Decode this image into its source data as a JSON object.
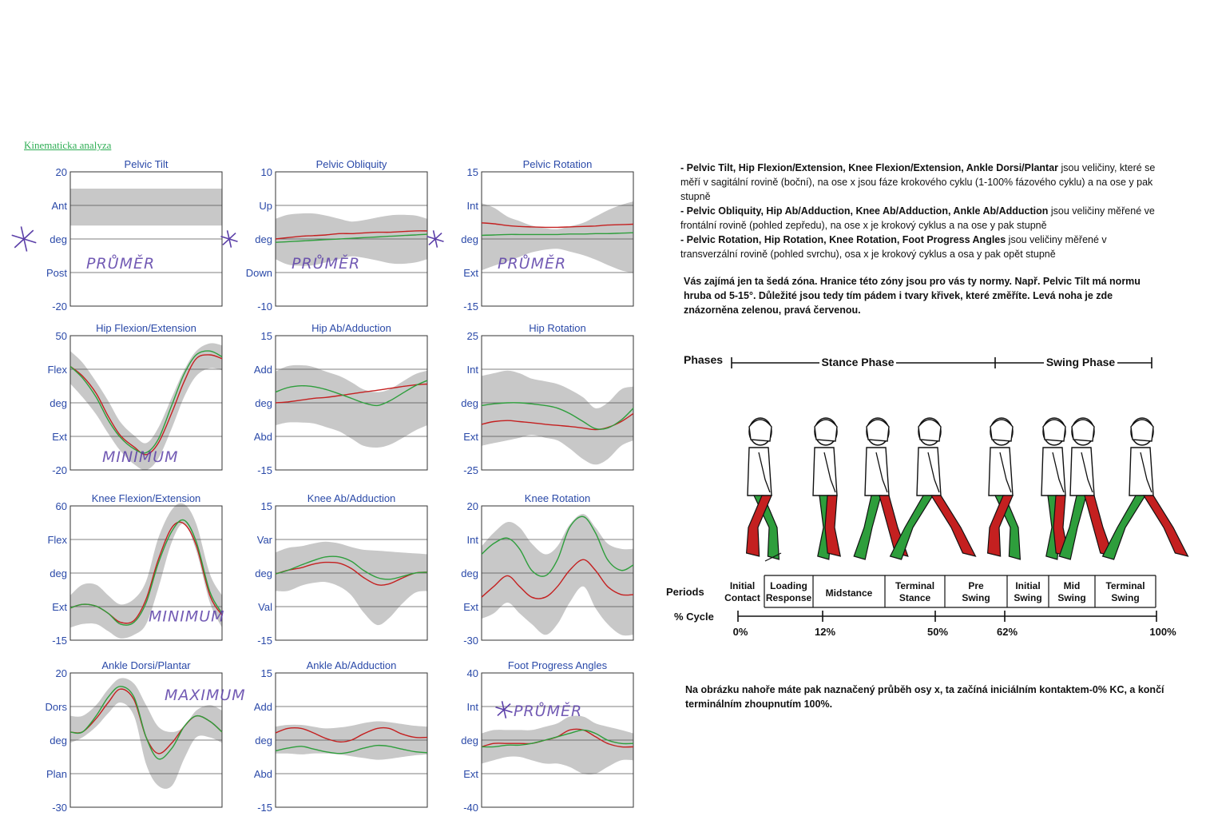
{
  "header": {
    "title": "Kinematicka analyza"
  },
  "colors": {
    "band": "#c8c8c8",
    "left": "#2e9e3c",
    "right": "#c42020",
    "axis": "#2a49a8",
    "annot": "#5b3fa8"
  },
  "charts": [
    {
      "id": "pelvic-tilt",
      "title": "Pelvic Tilt",
      "ymax": "20",
      "ymin": "-20",
      "labels": [
        "Ant",
        "deg",
        "Post"
      ],
      "annotation": "PRŮMĚR",
      "star": true
    },
    {
      "id": "pelvic-obliquity",
      "title": "Pelvic Obliquity",
      "ymax": "10",
      "ymin": "-10",
      "labels": [
        "Up",
        "deg",
        "Down"
      ],
      "annotation": "PRŮMĚR",
      "star": true
    },
    {
      "id": "pelvic-rotation",
      "title": "Pelvic Rotation",
      "ymax": "15",
      "ymin": "-15",
      "labels": [
        "Int",
        "deg",
        "Ext"
      ],
      "annotation": "PRŮMĚR",
      "star": true
    },
    {
      "id": "hip-flexion",
      "title": "Hip Flexion/Extension",
      "ymax": "50",
      "ymin": "-20",
      "labels": [
        "Flex",
        "deg",
        "Ext"
      ],
      "annotation": "MINIMUM"
    },
    {
      "id": "hip-abduction",
      "title": "Hip Ab/Adduction",
      "ymax": "15",
      "ymin": "-15",
      "labels": [
        "Add",
        "deg",
        "Abd"
      ]
    },
    {
      "id": "hip-rotation",
      "title": "Hip Rotation",
      "ymax": "25",
      "ymin": "-25",
      "labels": [
        "Int",
        "deg",
        "Ext"
      ]
    },
    {
      "id": "knee-flexion",
      "title": "Knee Flexion/Extension",
      "ymax": "60",
      "ymin": "-15",
      "labels": [
        "Flex",
        "deg",
        "Ext"
      ],
      "annotation": "MINIMUM"
    },
    {
      "id": "knee-abduction",
      "title": "Knee Ab/Adduction",
      "ymax": "15",
      "ymin": "-15",
      "labels": [
        "Var",
        "deg",
        "Val"
      ]
    },
    {
      "id": "knee-rotation",
      "title": "Knee Rotation",
      "ymax": "20",
      "ymin": "-30",
      "labels": [
        "Int",
        "deg",
        "Ext"
      ]
    },
    {
      "id": "ankle-dorsi",
      "title": "Ankle Dorsi/Plantar",
      "ymax": "20",
      "ymin": "-30",
      "labels": [
        "Dors",
        "deg",
        "Plan"
      ],
      "annotation": "MAXIMUM"
    },
    {
      "id": "ankle-abduction",
      "title": "Ankle Ab/Adduction",
      "ymax": "15",
      "ymin": "-15",
      "labels": [
        "Add",
        "deg",
        "Abd"
      ]
    },
    {
      "id": "foot-progress",
      "title": "Foot Progress Angles",
      "ymax": "40",
      "ymin": "-40",
      "labels": [
        "Int",
        "deg",
        "Ext"
      ],
      "annotation": "PRŮMĚR",
      "star": true
    }
  ],
  "chart_data": [
    {
      "type": "line",
      "title": "Pelvic Tilt",
      "x": [
        0,
        100
      ],
      "ylim": [
        -20,
        20
      ],
      "yticks": [
        "20",
        "Ant",
        "deg",
        "Post",
        "-20"
      ],
      "norm_band": [
        [
          4,
          15
        ],
        [
          4,
          15
        ]
      ],
      "series": []
    },
    {
      "type": "line",
      "title": "Pelvic Obliquity",
      "x": [
        0,
        8,
        17,
        25,
        33,
        42,
        50,
        58,
        67,
        75,
        83,
        92,
        100
      ],
      "ylim": [
        -10,
        10
      ],
      "yticks": [
        "10",
        "Up",
        "deg",
        "Down",
        "-10"
      ],
      "band_upper": [
        3,
        3.6,
        3.8,
        3.8,
        3.5,
        3,
        2.6,
        2.8,
        3.2,
        3.5,
        3.6,
        3.5,
        3
      ],
      "band_lower": [
        -3,
        -3.8,
        -4,
        -3.9,
        -3.5,
        -3,
        -2.6,
        -2.8,
        -3.2,
        -3.6,
        -3.7,
        -3.5,
        -3
      ],
      "series": [
        {
          "values": [
            0,
            0.2,
            0.4,
            0.5,
            0.6,
            0.8,
            0.8,
            0.9,
            1,
            1,
            1.1,
            1.2,
            1.2
          ]
        },
        {
          "values": [
            -0.5,
            -0.4,
            -0.3,
            -0.2,
            -0.1,
            0,
            0.1,
            0.2,
            0.3,
            0.4,
            0.5,
            0.6,
            0.7
          ]
        }
      ]
    },
    {
      "type": "line",
      "title": "Pelvic Rotation",
      "x": [
        0,
        8,
        17,
        25,
        33,
        42,
        50,
        58,
        67,
        75,
        83,
        92,
        100
      ],
      "ylim": [
        -15,
        15
      ],
      "yticks": [
        "15",
        "Int",
        "deg",
        "Ext",
        "-15"
      ],
      "band_upper": [
        8,
        7,
        5,
        4,
        3,
        2.4,
        2.2,
        2.8,
        3.6,
        5,
        6.4,
        7.6,
        8.4
      ],
      "band_lower": [
        -7,
        -6,
        -5,
        -4,
        -3,
        -2.4,
        -2.2,
        -2.8,
        -3.6,
        -4.6,
        -5.8,
        -7,
        -7.6
      ],
      "series": [
        {
          "values": [
            3.6,
            3.4,
            3,
            2.8,
            2.7,
            2.6,
            2.6,
            2.7,
            2.8,
            2.9,
            3.1,
            3.2,
            3.3
          ]
        },
        {
          "values": [
            0.8,
            0.9,
            1,
            1,
            1,
            1,
            1,
            1.1,
            1.1,
            1.2,
            1.2,
            1.3,
            1.4
          ]
        }
      ]
    },
    {
      "type": "line",
      "title": "Hip Flexion/Extension",
      "x": [
        0,
        8,
        17,
        25,
        33,
        42,
        50,
        58,
        67,
        75,
        83,
        92,
        100
      ],
      "ylim": [
        -20,
        50
      ],
      "yticks": [
        "50",
        "Flex",
        "deg",
        "Ext",
        "-20"
      ],
      "band_upper": [
        42,
        36,
        26,
        16,
        5,
        -2,
        -6,
        2,
        18,
        32,
        42,
        46,
        45
      ],
      "band_lower": [
        25,
        18,
        9,
        -1,
        -10,
        -17,
        -20,
        -14,
        2,
        18,
        29,
        33,
        32
      ],
      "series": [
        {
          "values": [
            34,
            29,
            20,
            8,
            -2,
            -8,
            -12,
            -6,
            10,
            26,
            38,
            40,
            38
          ]
        },
        {
          "values": [
            34,
            28,
            18,
            6,
            -3,
            -9,
            -11,
            -4,
            14,
            30,
            40,
            42,
            39
          ]
        }
      ]
    },
    {
      "type": "line",
      "title": "Hip Ab/Adduction",
      "x": [
        0,
        8,
        17,
        25,
        33,
        42,
        50,
        58,
        67,
        75,
        83,
        92,
        100
      ],
      "ylim": [
        -15,
        15
      ],
      "yticks": [
        "15",
        "Add",
        "deg",
        "Abd",
        "-15"
      ],
      "band_upper": [
        7,
        8.2,
        8.4,
        8,
        7,
        6,
        4.6,
        3,
        2.4,
        3,
        4.6,
        6.4,
        7.2
      ],
      "band_lower": [
        -5,
        -4.4,
        -4.4,
        -4.6,
        -5.4,
        -6.4,
        -8,
        -9.6,
        -10,
        -9.4,
        -8,
        -6.2,
        -5
      ],
      "series": [
        {
          "values": [
            0,
            0.2,
            0.6,
            1,
            1.2,
            1.6,
            2,
            2.4,
            2.8,
            3.2,
            3.6,
            4,
            4.2
          ]
        },
        {
          "values": [
            2.4,
            3.4,
            3.8,
            3.6,
            3,
            2,
            1,
            0,
            -0.6,
            0.4,
            2,
            3.8,
            5
          ]
        }
      ]
    },
    {
      "type": "line",
      "title": "Hip Rotation",
      "x": [
        0,
        8,
        17,
        25,
        33,
        42,
        50,
        58,
        67,
        75,
        83,
        92,
        100
      ],
      "ylim": [
        -25,
        25
      ],
      "yticks": [
        "25",
        "Int",
        "deg",
        "Ext",
        "-25"
      ],
      "band_upper": [
        10,
        11,
        12,
        11,
        9,
        8,
        7,
        5,
        2,
        -2,
        0,
        5,
        6
      ],
      "band_lower": [
        -16,
        -15,
        -14,
        -13,
        -12,
        -13,
        -14,
        -17,
        -21,
        -23,
        -21,
        -16,
        -14
      ],
      "series": [
        {
          "values": [
            -8,
            -7,
            -6.6,
            -7,
            -7.4,
            -8,
            -8.4,
            -8.8,
            -9.4,
            -10,
            -9.2,
            -7,
            -4
          ]
        },
        {
          "values": [
            -1,
            -0.4,
            0,
            0,
            -0.4,
            -1,
            -2,
            -4,
            -7,
            -9.6,
            -9.4,
            -6.4,
            -2
          ]
        }
      ]
    },
    {
      "type": "line",
      "title": "Knee Flexion/Extension",
      "x": [
        0,
        8,
        17,
        25,
        33,
        42,
        50,
        58,
        67,
        75,
        83,
        92,
        100
      ],
      "ylim": [
        -15,
        60
      ],
      "yticks": [
        "60",
        "Flex",
        "deg",
        "Ext",
        "-15"
      ],
      "band_upper": [
        10,
        16,
        16,
        10,
        5,
        8,
        18,
        42,
        58,
        61,
        50,
        22,
        10
      ],
      "band_lower": [
        -8,
        -6,
        -6,
        -10,
        -14,
        -12,
        -6,
        14,
        40,
        50,
        35,
        6,
        -8
      ],
      "series": [
        {
          "values": [
            3,
            5,
            4,
            0,
            -5,
            -4,
            8,
            30,
            48,
            50,
            38,
            10,
            -1
          ]
        },
        {
          "values": [
            3,
            5,
            4,
            0,
            -6,
            -5,
            6,
            28,
            46,
            52,
            40,
            12,
            0
          ]
        }
      ]
    },
    {
      "type": "line",
      "title": "Knee Ab/Adduction",
      "x": [
        0,
        8,
        17,
        25,
        33,
        42,
        50,
        58,
        67,
        75,
        83,
        92,
        100
      ],
      "ylim": [
        -15,
        15
      ],
      "yticks": [
        "15",
        "Var",
        "deg",
        "Val",
        "-15"
      ],
      "band_upper": [
        4.6,
        5.6,
        6,
        6.6,
        7,
        6.6,
        5.8,
        5.2,
        5,
        4.8,
        4.6,
        4.4,
        4.2
      ],
      "band_lower": [
        -4,
        -4,
        -2.8,
        -2.2,
        -2,
        -3,
        -5,
        -8.8,
        -11.6,
        -10,
        -7,
        -4.4,
        -4
      ],
      "series": [
        {
          "values": [
            -0.2,
            0.6,
            1.2,
            2,
            2.4,
            2.2,
            1,
            -1,
            -2.6,
            -2.4,
            -1.2,
            0,
            0.2
          ]
        },
        {
          "values": [
            -0.2,
            0.6,
            1.8,
            2.8,
            3.6,
            3.6,
            2.6,
            0.6,
            -1,
            -1.4,
            -0.8,
            0,
            0.2
          ]
        }
      ]
    },
    {
      "type": "line",
      "title": "Knee Rotation",
      "x": [
        0,
        8,
        17,
        25,
        33,
        42,
        50,
        58,
        67,
        75,
        83,
        92,
        100
      ],
      "ylim": [
        -30,
        20
      ],
      "yticks": [
        "20",
        "Int",
        "deg",
        "Ext",
        "-30"
      ],
      "band_upper": [
        5,
        10,
        14,
        12,
        6,
        2,
        5,
        13,
        17,
        12,
        6,
        4,
        4
      ],
      "band_lower": [
        -22,
        -20,
        -16,
        -20,
        -24,
        -28,
        -24,
        -16,
        -10,
        -18,
        -24,
        -28,
        -28
      ],
      "series": [
        {
          "values": [
            -14,
            -10,
            -6,
            -10,
            -14,
            -14,
            -10,
            -4,
            0,
            -4,
            -10,
            -13,
            -13
          ]
        },
        {
          "values": [
            2,
            6,
            8,
            4,
            -4,
            -6,
            0,
            12,
            16,
            10,
            0,
            -4,
            -2
          ]
        }
      ]
    },
    {
      "type": "line",
      "title": "Ankle Dorsi/Plantar",
      "x": [
        0,
        8,
        17,
        25,
        33,
        42,
        50,
        58,
        67,
        75,
        83,
        92,
        100
      ],
      "ylim": [
        -30,
        20
      ],
      "yticks": [
        "20",
        "Dors",
        "deg",
        "Plan",
        "-30"
      ],
      "band_upper": [
        4,
        4,
        8,
        14,
        18,
        16,
        8,
        0,
        -2,
        0,
        6,
        8,
        6
      ],
      "band_lower": [
        -6,
        -4,
        0,
        5,
        9,
        4,
        -14,
        -22,
        -22,
        -12,
        -4,
        -4,
        -6
      ],
      "series": [
        {
          "values": [
            -2,
            -2,
            3,
            9,
            14,
            10,
            -4,
            -10,
            -6,
            0,
            4,
            2,
            -2
          ]
        },
        {
          "values": [
            -2,
            -2,
            4,
            11,
            15,
            11,
            -4,
            -12,
            -8,
            0,
            4,
            2,
            -2
          ]
        }
      ]
    },
    {
      "type": "line",
      "title": "Ankle Ab/Adduction",
      "x": [
        0,
        8,
        17,
        25,
        33,
        42,
        50,
        58,
        67,
        75,
        83,
        92,
        100
      ],
      "ylim": [
        -15,
        15
      ],
      "yticks": [
        "15",
        "Add",
        "deg",
        "Abd",
        "-15"
      ],
      "band_upper": [
        3,
        3.4,
        3.4,
        3,
        2.6,
        2.8,
        3.2,
        3.8,
        4.2,
        4,
        3.6,
        3.2,
        3
      ],
      "band_lower": [
        -3,
        -3,
        -3.2,
        -3,
        -3,
        -3.2,
        -3.6,
        -4,
        -4.4,
        -4.2,
        -3.8,
        -3.4,
        -3.2
      ],
      "series": [
        {
          "values": [
            1.6,
            2.6,
            2.6,
            1.6,
            0.4,
            -0.4,
            0,
            1.4,
            2.6,
            2.6,
            1.4,
            0.6,
            0.6
          ]
        },
        {
          "values": [
            -2.4,
            -1.8,
            -1.4,
            -2,
            -2.6,
            -3,
            -2.6,
            -1.8,
            -1.2,
            -1.4,
            -2,
            -2.6,
            -2.8
          ]
        }
      ]
    },
    {
      "type": "line",
      "title": "Foot Progress Angles",
      "x": [
        0,
        8,
        17,
        25,
        33,
        42,
        50,
        58,
        67,
        75,
        83,
        92,
        100
      ],
      "ylim": [
        -40,
        40
      ],
      "yticks": [
        "40",
        "Int",
        "deg",
        "Ext",
        "-40"
      ],
      "band_upper": [
        4,
        6,
        6,
        6,
        6,
        8,
        10,
        14,
        14,
        10,
        8,
        6,
        4
      ],
      "band_lower": [
        -14,
        -12,
        -10,
        -10,
        -12,
        -14,
        -14,
        -16,
        -20,
        -20,
        -16,
        -12,
        -12
      ],
      "series": [
        {
          "values": [
            -4,
            -2,
            -2,
            -2,
            -2,
            0,
            2,
            6,
            6,
            2,
            -2,
            -4,
            -4
          ]
        },
        {
          "values": [
            -4,
            -4,
            -3,
            -3,
            -2,
            0,
            2,
            4,
            6,
            4,
            0,
            -2,
            -2
          ]
        }
      ]
    }
  ],
  "notes": {
    "n1_b1": "- Pelvic Tilt, Hip Flexion/Extension, Knee Flexion/Extension, Ankle Dorsi/Plantar",
    "n1_t1": " jsou veličiny, které se měří v sagitální rovině (boční), na ose x jsou fáze krokového cyklu (1-100% fázového cyklu) a na ose y pak stupně",
    "n1_b2": "- Pelvic Obliquity, Hip Ab/Adduction, Knee Ab/Adduction, Ankle Ab/Adduction",
    "n1_t2": " jsou veličiny měřené ve frontální rovině (pohled zepředu), na ose x je krokový cyklus a na ose y pak stupně",
    "n1_b3": "- Pelvic Rotation, Hip Rotation, Knee Rotation, Foot Progress Angles",
    "n1_t3": " jsou veličiny měřené v transverzální rovině (pohled svrchu), osa x je krokový cyklus a osa y pak opět stupně",
    "n2": "Vás zajímá jen ta šedá zóna. Hranice této zóny jsou pro vás ty normy. Např. Pelvic Tilt má normu hruba od 5-15°. Důležité jsou tedy tím pádem i tvary křivek, které změříte. Levá noha je zde znázorněna zelenou, pravá červenou.",
    "n3": "Na obrázku nahoře máte pak naznačený průběh osy x, ta začíná iniciálním kontaktem-0% KC, a končí terminálním zhoupnutím 100%."
  },
  "gait": {
    "phases_label": "Phases",
    "stance": "Stance Phase",
    "swing": "Swing Phase",
    "periods_label": "Periods",
    "cycle_label": "% Cycle",
    "periods": [
      [
        "Initial",
        "Contact"
      ],
      [
        "Loading",
        "Response"
      ],
      [
        "Midstance"
      ],
      [
        "Terminal",
        "Stance"
      ],
      [
        "Pre",
        "Swing"
      ],
      [
        "Initial",
        "Swing"
      ],
      [
        "Mid",
        "Swing"
      ],
      [
        "Terminal",
        "Swing"
      ]
    ],
    "cycle_ticks": [
      "0%",
      "12%",
      "50%",
      "62%",
      "100%"
    ]
  }
}
